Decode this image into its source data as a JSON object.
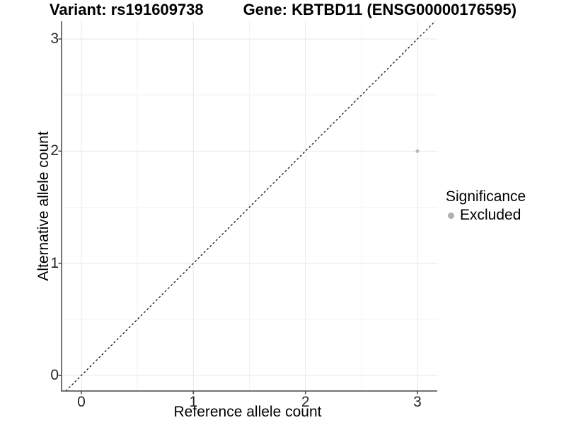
{
  "header": {
    "variant_title": "Variant: rs191609738",
    "gene_title": "Gene: KBTBD11 (ENSG00000176595)"
  },
  "chart_data": {
    "type": "scatter",
    "title": "Variant: rs191609738    Gene: KBTBD11 (ENSG00000176595)",
    "xlabel": "Reference allele count",
    "ylabel": "Alternative allele count",
    "x_ticks": [
      0,
      1,
      2,
      3
    ],
    "y_ticks": [
      0,
      1,
      2,
      3
    ],
    "x_minor_ticks": [
      0.5,
      1.5,
      2.5
    ],
    "y_minor_ticks": [
      0.5,
      1.5,
      2.5
    ],
    "xlim": [
      -0.18,
      3.18
    ],
    "ylim": [
      -0.14,
      3.16
    ],
    "grid": true,
    "legend_position": "right",
    "series": [
      {
        "name": "Excluded",
        "marker": "circle",
        "color": "#b9b9b9",
        "points": [
          {
            "x": 3,
            "y": 2
          }
        ]
      }
    ],
    "reference_line": {
      "type": "abline",
      "slope": 1,
      "intercept": 0,
      "style": "dashed",
      "color": "#000000"
    }
  },
  "legend": {
    "title": "Significance",
    "entries": [
      {
        "label": "Excluded",
        "color": "#b0b0b0"
      }
    ]
  },
  "colors": {
    "background": "#ffffff",
    "grid_major": "#e7e7e7",
    "grid_minor": "#f2f2f2",
    "axis": "#454545",
    "tick_text": "#262626",
    "text": "#000000"
  }
}
